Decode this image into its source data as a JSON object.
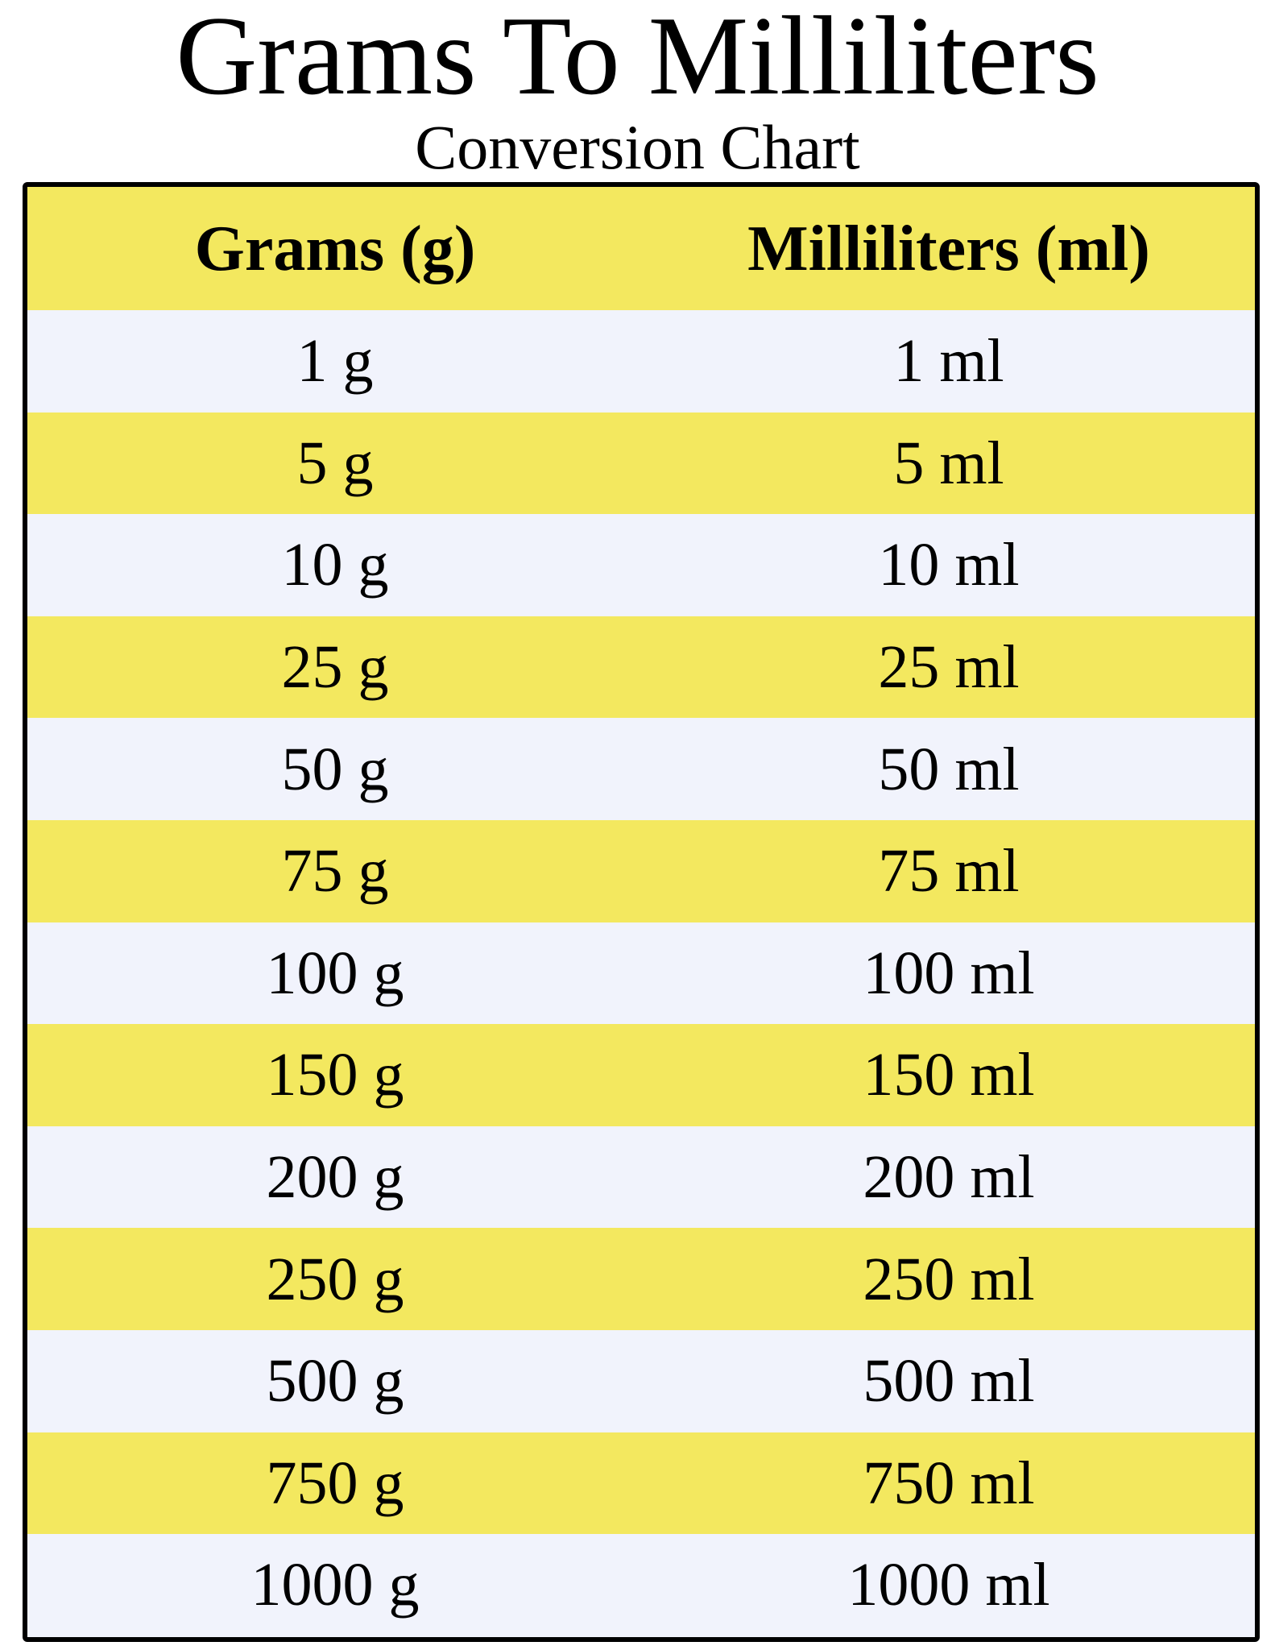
{
  "title": "Grams To Milliliters",
  "subtitle": "Conversion Chart",
  "colors": {
    "header_bg": "#f3e85f",
    "alt_row_bg": "#f3e85f",
    "row_bg": "#f1f3fc",
    "border": "#000000"
  },
  "table": {
    "headers": [
      "Grams (g)",
      "Milliliters (ml)"
    ],
    "rows": [
      [
        "1 g",
        "1 ml"
      ],
      [
        "5 g",
        "5 ml"
      ],
      [
        "10 g",
        "10 ml"
      ],
      [
        "25 g",
        "25 ml"
      ],
      [
        "50 g",
        "50 ml"
      ],
      [
        "75 g",
        "75 ml"
      ],
      [
        "100 g",
        "100 ml"
      ],
      [
        "150 g",
        "150 ml"
      ],
      [
        "200 g",
        "200 ml"
      ],
      [
        "250 g",
        "250 ml"
      ],
      [
        "500 g",
        "500 ml"
      ],
      [
        "750 g",
        "750 ml"
      ],
      [
        "1000 g",
        "1000 ml"
      ]
    ]
  }
}
